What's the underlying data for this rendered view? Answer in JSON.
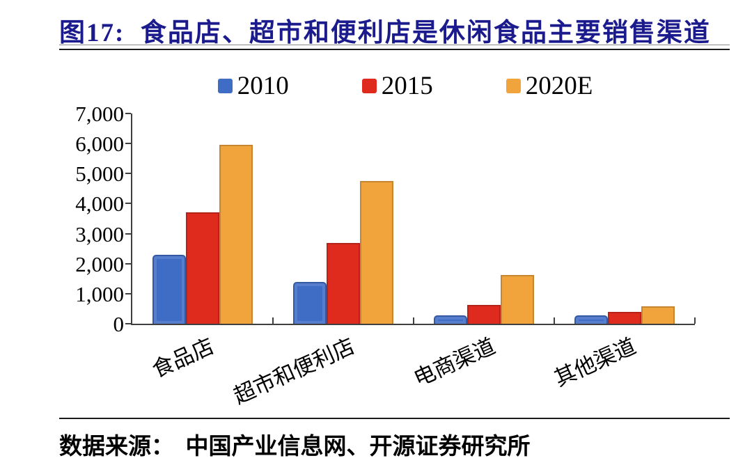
{
  "figure": {
    "title": "图17:  食品店、超市和便利店是休闲食品主要销售渠道",
    "title_color": "#1b1b8e"
  },
  "chart_data": {
    "type": "bar",
    "title": "食品店、超市和便利店是休闲食品主要销售渠道",
    "categories": [
      "食品店",
      "超市和便利店",
      "电商渠道",
      "其他渠道"
    ],
    "series": [
      {
        "name": "2010",
        "color": "#3f6dc6",
        "values": [
          2300,
          1400,
          270,
          280
        ]
      },
      {
        "name": "2015",
        "color": "#de2b1e",
        "values": [
          3700,
          2700,
          620,
          390
        ]
      },
      {
        "name": "2020E",
        "color": "#f1a33c",
        "values": [
          5950,
          4750,
          1630,
          590
        ]
      }
    ],
    "xlabel": "",
    "ylabel": "",
    "ylim": [
      0,
      7000
    ],
    "ytick_labels": [
      "0",
      "1,000",
      "2,000",
      "3,000",
      "4,000",
      "5,000",
      "6,000",
      "7,000"
    ],
    "grid": false,
    "legend_position": "top",
    "axis_color": "#3f3f3f"
  },
  "footer": {
    "source_text": "数据来源：  中国产业信息网、开源证券研究所"
  }
}
